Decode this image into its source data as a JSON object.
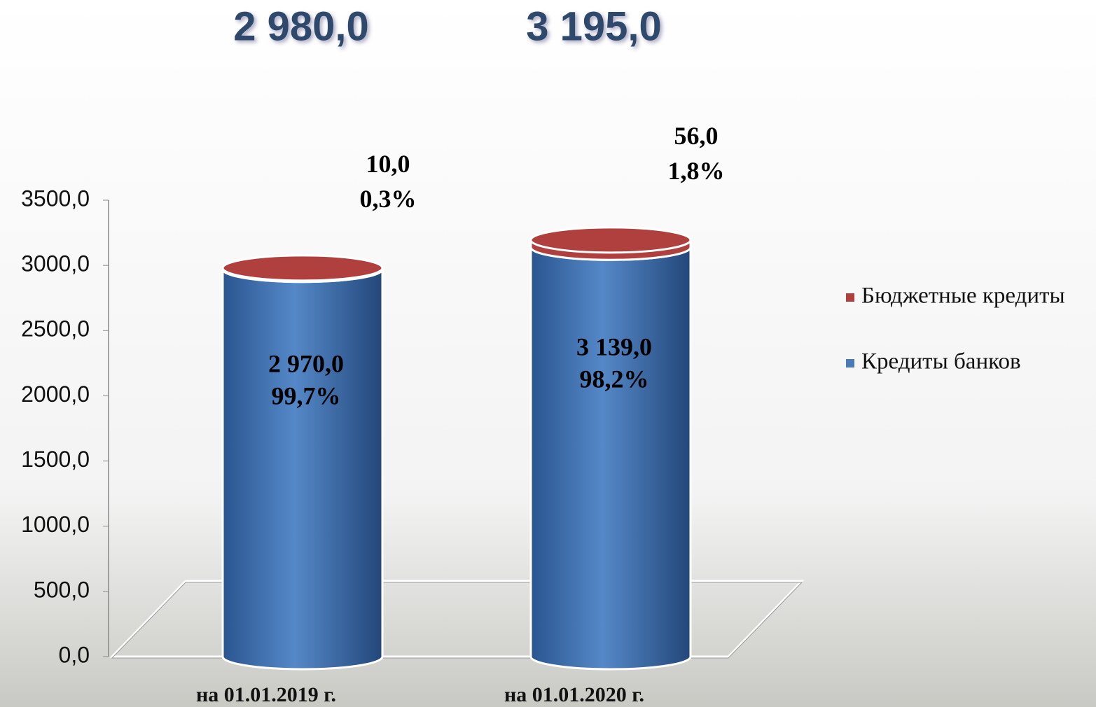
{
  "chart_data": {
    "type": "cylinder_stacked",
    "categories": [
      "на 01.01.2019 г.",
      "на 01.01.2020 г."
    ],
    "total_labels": [
      "2 980,0",
      "3 195,0"
    ],
    "series": [
      {
        "name": "Кредиты банков",
        "color": "#4a7ab8",
        "values": [
          2970.0,
          3139.0
        ],
        "value_labels": [
          "2 970,0",
          "3 139,0"
        ],
        "share_labels": [
          "99,7%",
          "98,2%"
        ]
      },
      {
        "name": "Бюджетные кредиты",
        "color": "#b0403e",
        "values": [
          10.0,
          56.0
        ],
        "value_labels": [
          "10,0",
          "56,0"
        ],
        "share_labels": [
          "0,3%",
          "1,8%"
        ]
      }
    ],
    "ylim": [
      0,
      3500
    ],
    "yticks": [
      {
        "value": 0,
        "label": "0,0"
      },
      {
        "value": 500,
        "label": "500,0"
      },
      {
        "value": 1000,
        "label": "1000,0"
      },
      {
        "value": 1500,
        "label": "1500,0"
      },
      {
        "value": 2000,
        "label": "2000,0"
      },
      {
        "value": 2500,
        "label": "2500,0"
      },
      {
        "value": 3000,
        "label": "3000,0"
      },
      {
        "value": 3500,
        "label": "3500,0"
      }
    ],
    "legend": "right"
  }
}
